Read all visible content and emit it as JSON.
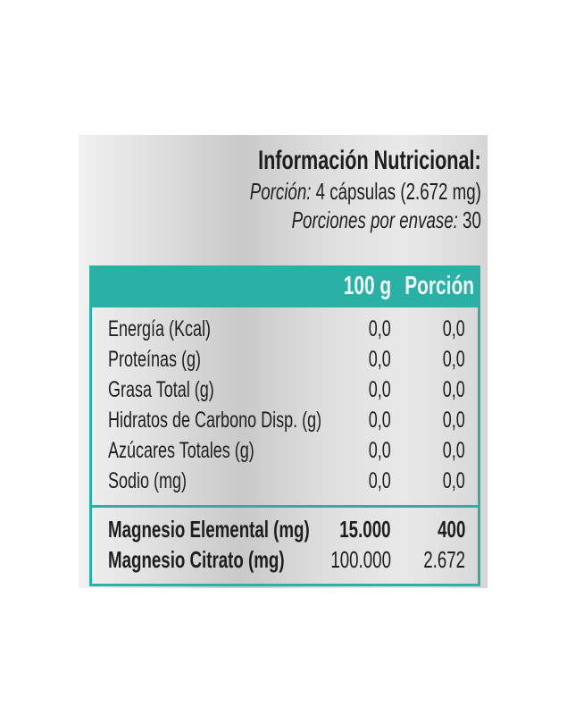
{
  "header": {
    "title": "Información Nutricional:",
    "serving_label": "Porción:",
    "serving_value": "4 cápsulas (2.672 mg)",
    "servings_label": "Porciones por envase:",
    "servings_value": "30"
  },
  "table": {
    "columns": [
      "100 g",
      "Porción"
    ],
    "rows": [
      {
        "label": "Energía (Kcal)",
        "per100": "0,0",
        "portion": "0,0"
      },
      {
        "label": "Proteínas (g)",
        "per100": "0,0",
        "portion": "0,0"
      },
      {
        "label": "Grasa Total (g)",
        "per100": "0,0",
        "portion": "0,0"
      },
      {
        "label": "Hidratos de Carbono Disp. (g)",
        "per100": "0,0",
        "portion": "0,0"
      },
      {
        "label": "Azúcares Totales (g)",
        "per100": "0,0",
        "portion": "0,0"
      },
      {
        "label": "Sodio (mg)",
        "per100": "0,0",
        "portion": "0,0"
      }
    ],
    "extra_rows": [
      {
        "label": "Magnesio Elemental (mg)",
        "per100": "15.000",
        "portion": "400"
      },
      {
        "label": "Magnesio Citrato (mg)",
        "per100": "100.000",
        "portion": "2.672"
      }
    ]
  },
  "colors": {
    "accent": "#2bb0a6",
    "text": "#1e1e1e"
  }
}
